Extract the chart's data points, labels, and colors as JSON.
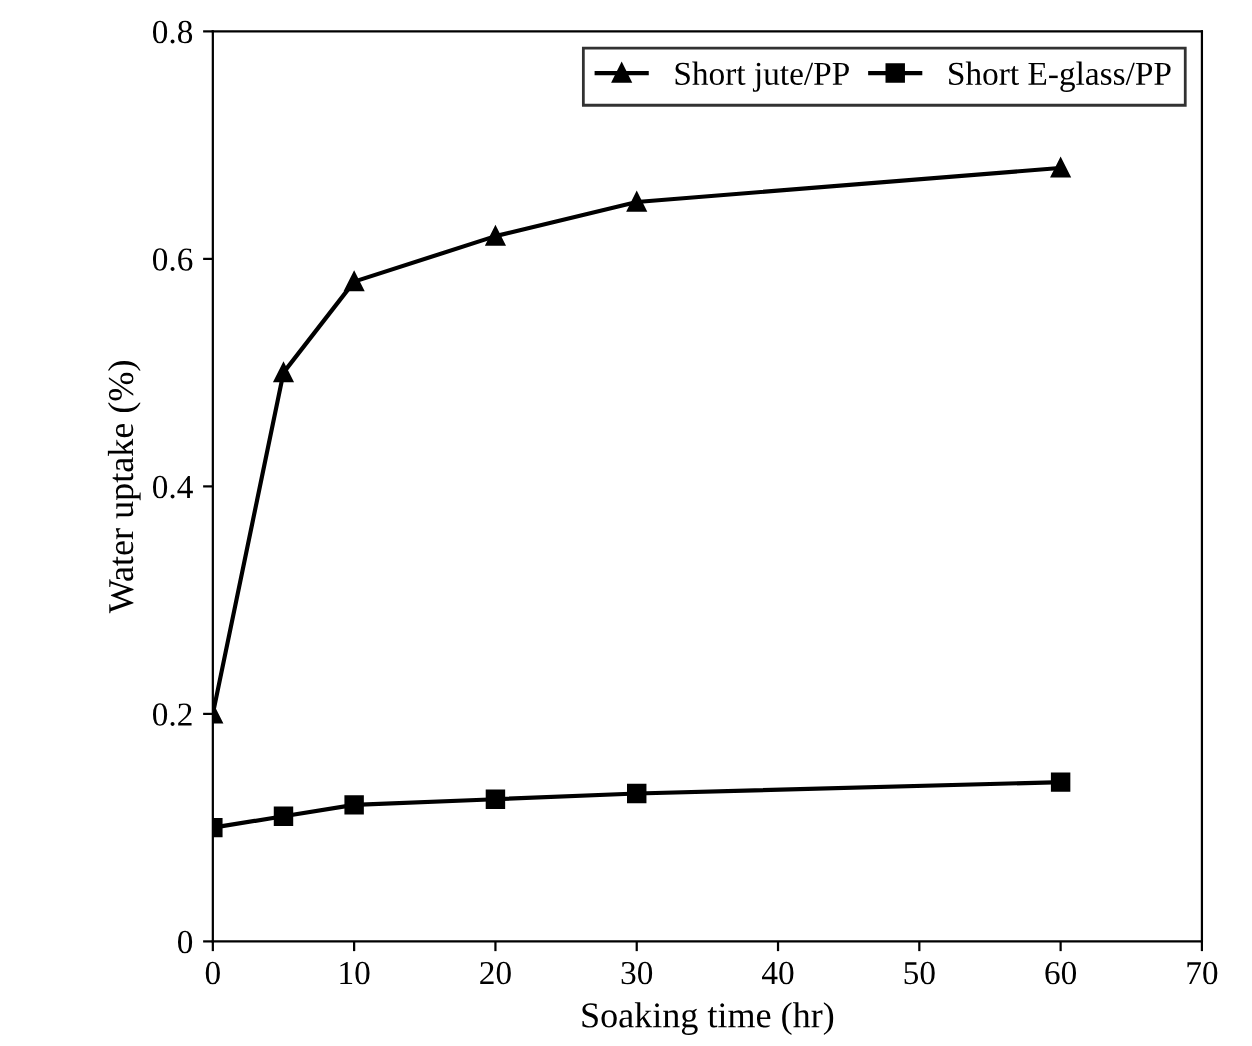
{
  "chart_data": {
    "type": "line",
    "xlabel": "Soaking time (hr)",
    "ylabel": "Water uptake (%)",
    "x": [
      0,
      5,
      10,
      20,
      30,
      60
    ],
    "series": [
      {
        "name": "Short jute/PP",
        "color": "#000000",
        "marker": "triangle",
        "values": [
          0.2,
          0.5,
          0.58,
          0.62,
          0.65,
          0.68
        ]
      },
      {
        "name": "Short E-glass/PP",
        "color": "#000000",
        "marker": "square",
        "values": [
          0.1,
          0.11,
          0.12,
          0.125,
          0.13,
          0.14
        ]
      }
    ],
    "xlim": [
      0,
      70
    ],
    "xticks": [
      0,
      10,
      20,
      30,
      40,
      50,
      60,
      70
    ],
    "ylim": [
      0,
      0.8
    ],
    "yticks": [
      0,
      0.2,
      0.4,
      0.6,
      0.8
    ],
    "grid": false,
    "legend": "top right",
    "line_style": "solid"
  }
}
